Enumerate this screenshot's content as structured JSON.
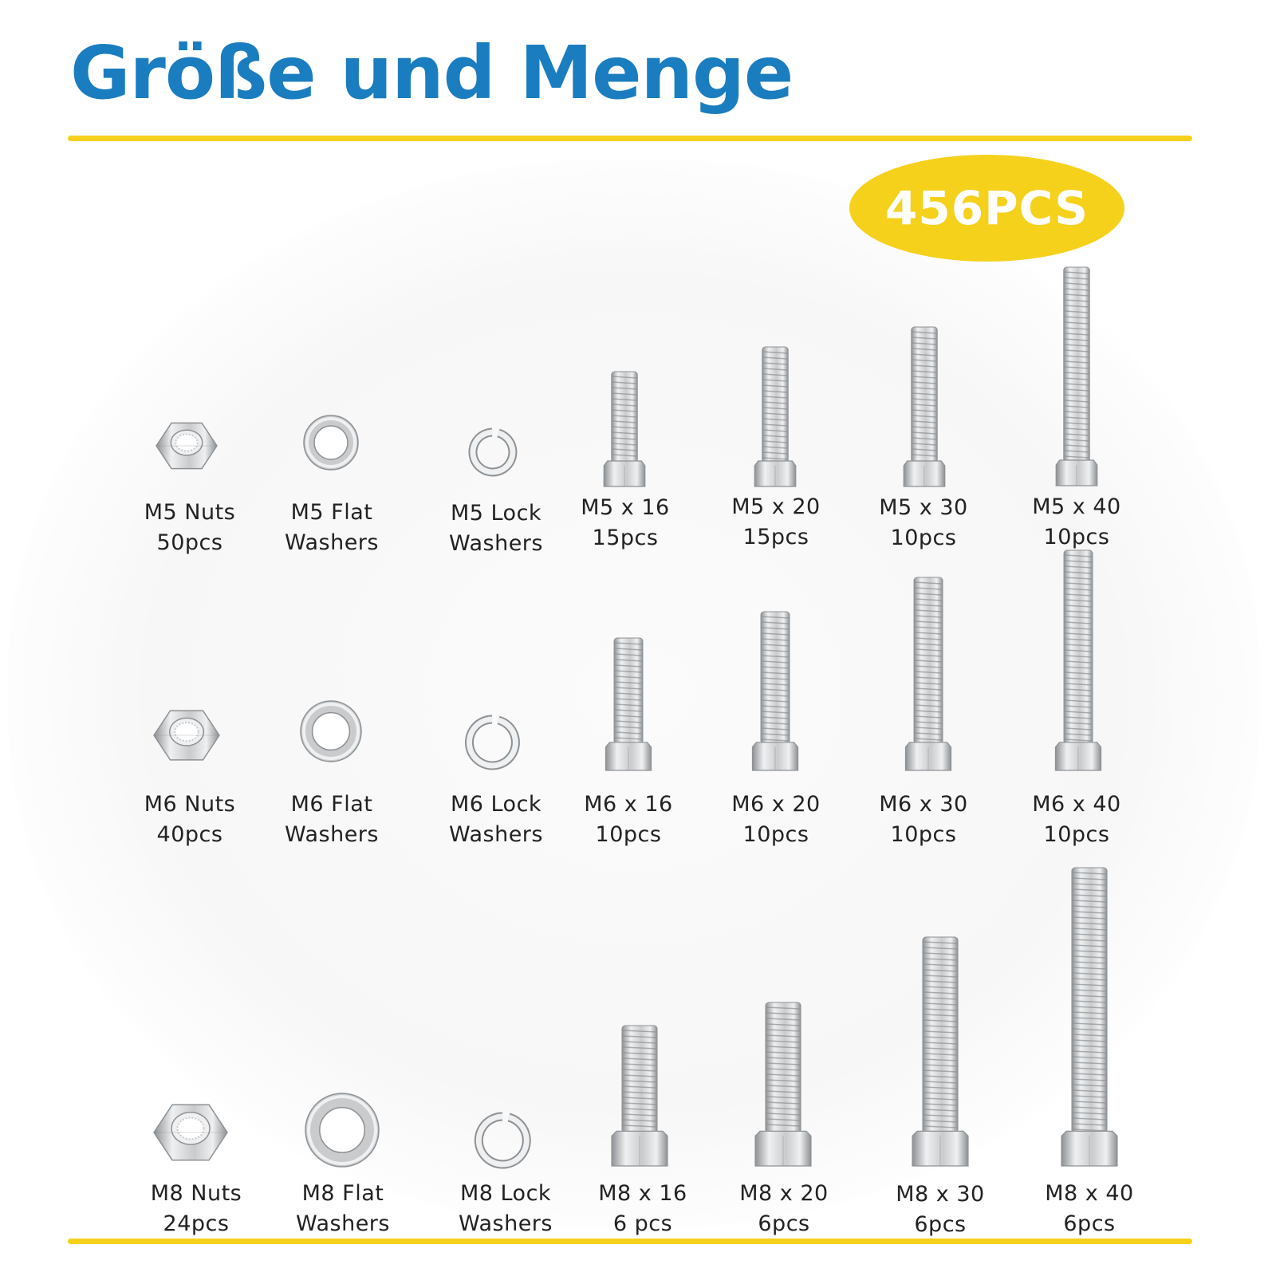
{
  "title": "Größe und Menge",
  "badge": "456PCS",
  "colors": {
    "title_blue": "#1a7dc0",
    "accent_yellow": "#f5d11c",
    "steel": "#c9cbcd",
    "steel_dark": "#8e9194",
    "steel_light": "#eef0f1"
  },
  "items": [
    {
      "id": "m5-nuts",
      "kind": "nut",
      "name": "M5 Nuts",
      "qty": "50pcs",
      "icon": "hex-nut-icon"
    },
    {
      "id": "m5-flat-washers",
      "kind": "flat-washer",
      "name": "M5 Flat",
      "qty": "Washers",
      "icon": "flat-washer-icon"
    },
    {
      "id": "m5-lock-washers",
      "kind": "lock-washer",
      "name": "M5 Lock",
      "qty": "Washers",
      "icon": "lock-washer-icon"
    },
    {
      "id": "m5x16",
      "kind": "bolt",
      "name": "M5 x 16",
      "qty": "15pcs",
      "icon": "hex-bolt-icon"
    },
    {
      "id": "m5x20",
      "kind": "bolt",
      "name": "M5 x 20",
      "qty": "15pcs",
      "icon": "hex-bolt-icon"
    },
    {
      "id": "m5x30",
      "kind": "bolt",
      "name": "M5 x 30",
      "qty": "10pcs",
      "icon": "hex-bolt-icon"
    },
    {
      "id": "m5x40",
      "kind": "bolt",
      "name": "M5 x 40",
      "qty": "10pcs",
      "icon": "hex-bolt-icon"
    },
    {
      "id": "m6-nuts",
      "kind": "nut",
      "name": "M6 Nuts",
      "qty": "40pcs",
      "icon": "hex-nut-icon"
    },
    {
      "id": "m6-flat-washers",
      "kind": "flat-washer",
      "name": "M6 Flat",
      "qty": "Washers",
      "icon": "flat-washer-icon"
    },
    {
      "id": "m6-lock-washers",
      "kind": "lock-washer",
      "name": "M6 Lock",
      "qty": "Washers",
      "icon": "lock-washer-icon"
    },
    {
      "id": "m6x16",
      "kind": "bolt",
      "name": "M6 x 16",
      "qty": "10pcs",
      "icon": "hex-bolt-icon"
    },
    {
      "id": "m6x20",
      "kind": "bolt",
      "name": "M6 x 20",
      "qty": "10pcs",
      "icon": "hex-bolt-icon"
    },
    {
      "id": "m6x30",
      "kind": "bolt",
      "name": "M6 x 30",
      "qty": "10pcs",
      "icon": "hex-bolt-icon"
    },
    {
      "id": "m6x40",
      "kind": "bolt",
      "name": "M6 x 40",
      "qty": "10pcs",
      "icon": "hex-bolt-icon"
    },
    {
      "id": "m8-nuts",
      "kind": "nut",
      "name": "M8 Nuts",
      "qty": "24pcs",
      "icon": "hex-nut-icon"
    },
    {
      "id": "m8-flat-washers",
      "kind": "flat-washer",
      "name": "M8 Flat",
      "qty": "Washers",
      "icon": "flat-washer-icon"
    },
    {
      "id": "m8-lock-washers",
      "kind": "lock-washer",
      "name": "M8 Lock",
      "qty": "Washers",
      "icon": "lock-washer-icon"
    },
    {
      "id": "m8x16",
      "kind": "bolt",
      "name": "M8 x 16",
      "qty": "6 pcs",
      "icon": "hex-bolt-icon"
    },
    {
      "id": "m8x20",
      "kind": "bolt",
      "name": "M8 x 20",
      "qty": "6pcs",
      "icon": "hex-bolt-icon"
    },
    {
      "id": "m8x30",
      "kind": "bolt",
      "name": "M8 x 30",
      "qty": "6pcs",
      "icon": "hex-bolt-icon"
    },
    {
      "id": "m8x40",
      "kind": "bolt",
      "name": "M8 x 40",
      "qty": "6pcs",
      "icon": "hex-bolt-icon"
    }
  ]
}
